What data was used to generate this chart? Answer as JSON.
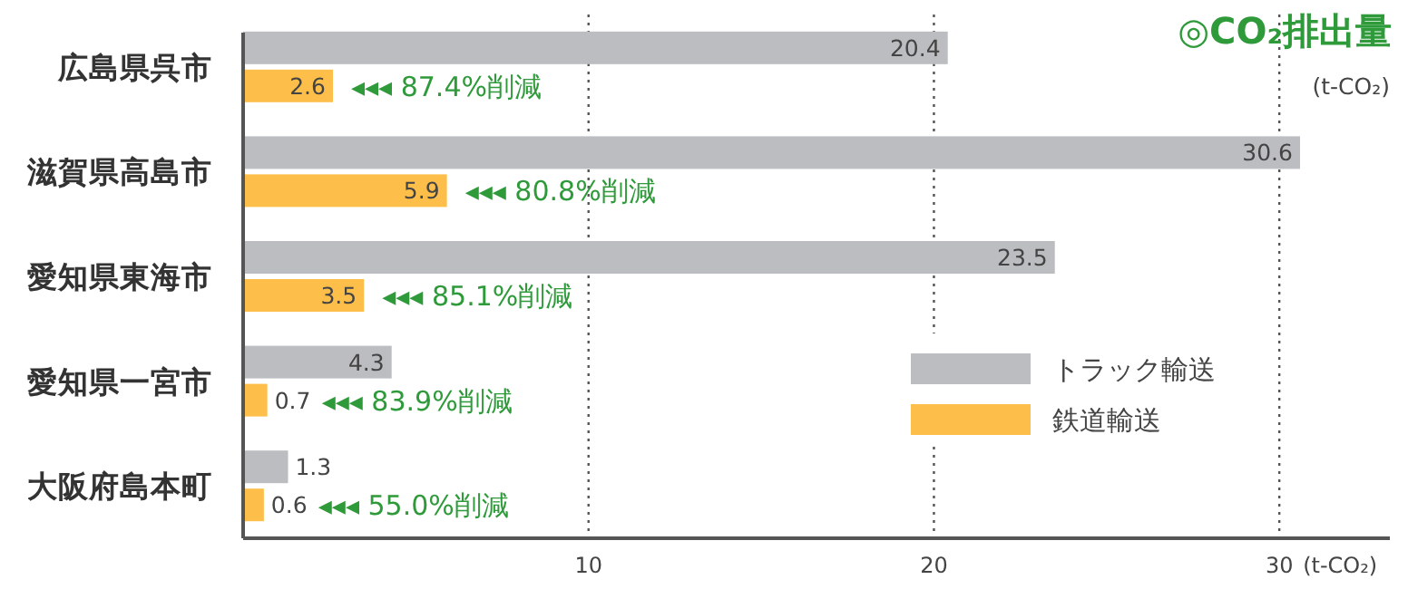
{
  "chart_data": {
    "type": "bar",
    "orientation": "horizontal",
    "title": "◎CO₂排出量",
    "subtitle": "(t-CO₂)",
    "xlabel": "(t-CO₂)",
    "categories": [
      "広島県呉市",
      "滋賀県高島市",
      "愛知県東海市",
      "愛知県一宮市",
      "大阪府島本町"
    ],
    "series": [
      {
        "name": "トラック輸送",
        "color": "#bcbdc0",
        "values": [
          20.4,
          30.6,
          23.5,
          4.3,
          1.3
        ]
      },
      {
        "name": "鉄道輸送",
        "color": "#fdbf4a",
        "values": [
          2.6,
          5.9,
          3.5,
          0.7,
          0.6
        ]
      }
    ],
    "annotations": [
      {
        "text": "◂◂◂ 87.4%削減",
        "x": 2.6,
        "y": "広島県呉市"
      },
      {
        "text": "◂◂◂ 80.8%削減",
        "x": 5.9,
        "y": "滋賀県高島市"
      },
      {
        "text": "◂◂◂ 85.1%削減",
        "x": 3.5,
        "y": "愛知県東海市"
      },
      {
        "text": "◂◂◂ 83.9%削減",
        "x": 0.7,
        "y": "愛知県一宮市"
      },
      {
        "text": "◂◂◂ 55.0%削減",
        "x": 0.6,
        "y": "大阪府島本町"
      }
    ],
    "xlim": [
      0,
      33.2
    ],
    "xticks": [
      10,
      20,
      30
    ],
    "grid": "x",
    "legend": "bottom right",
    "data_labels": true
  }
}
